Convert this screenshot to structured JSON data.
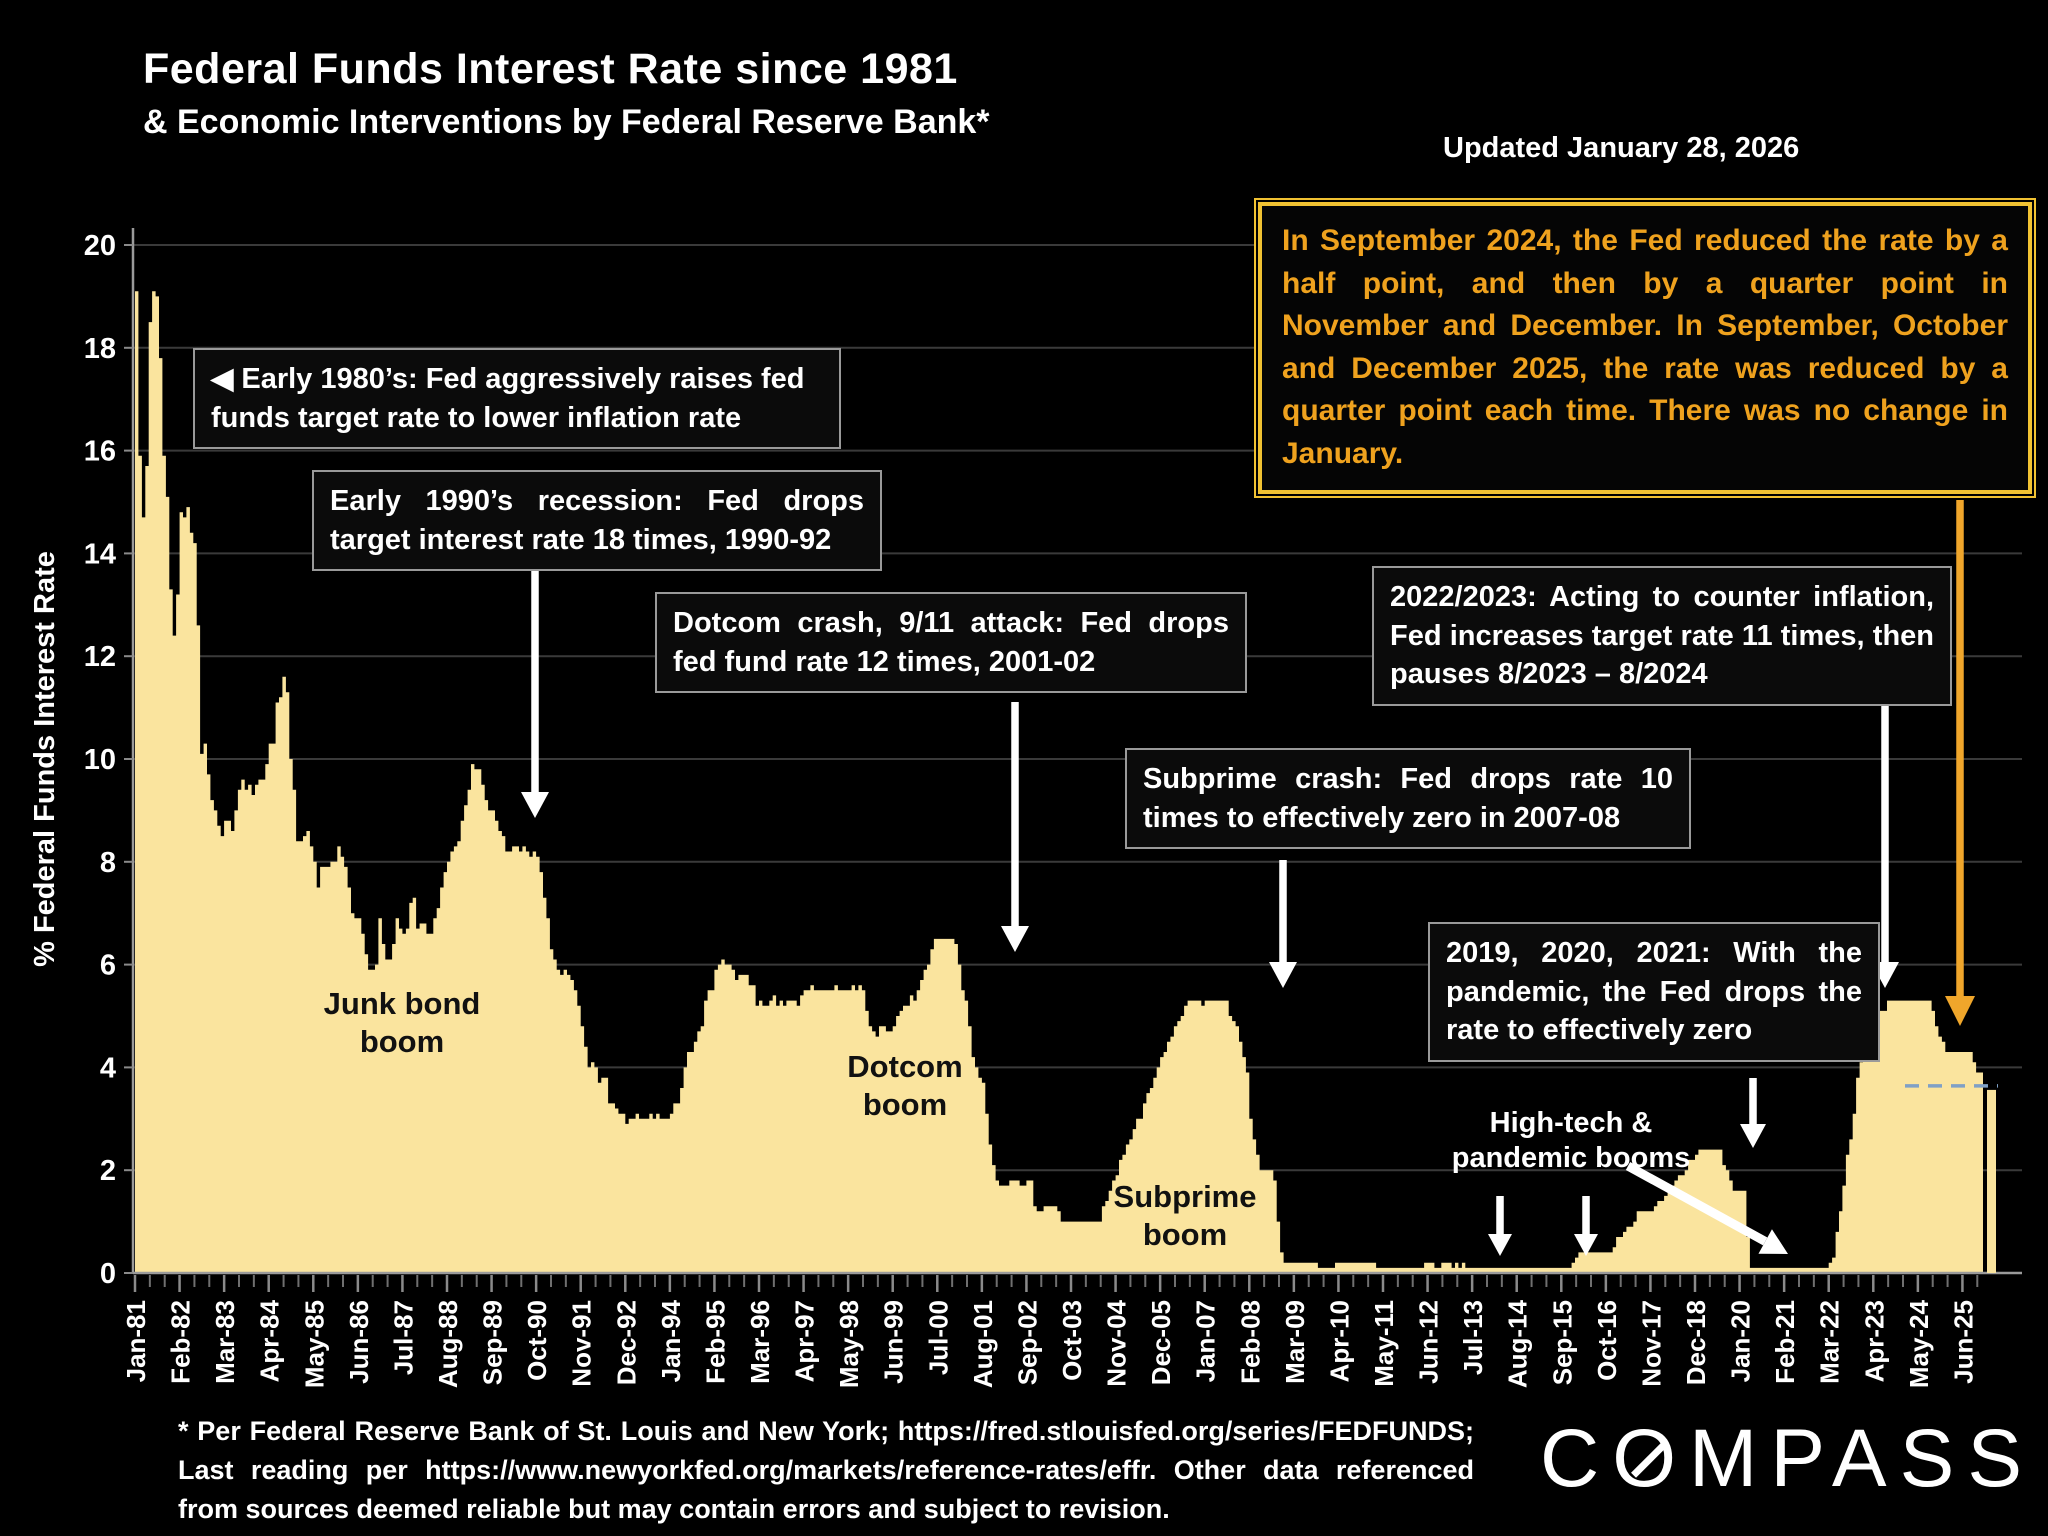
{
  "header": {
    "title": "Federal Funds Interest Rate since 1981",
    "subtitle": "& Economic Interventions by Federal Reserve Bank*",
    "updated": "Updated January 28, 2026"
  },
  "callout": {
    "text": "In September 2024, the Fed reduced the rate by a half point, and then by a quarter point in November and December. In September, October and December 2025, the rate was reduced by a quarter point each time. There was no change in January.",
    "text_color": "#EFA21E",
    "border_color": "#F1C232"
  },
  "annotations": {
    "early80s": "◀ Early 1980’s: Fed aggressively raises fed funds target rate to lower inflation rate",
    "early90s": "Early 1990’s recession: Fed drops target interest rate 18 times, 1990-92",
    "dotcom_crash": "Dotcom crash, 9/11 attack: Fed drops fed fund rate 12 times, 2001-02",
    "inflation2022": "2022/2023: Acting to counter inflation, Fed increases target rate 11 times, then pauses 8/2023 – 8/2024",
    "subprime_crash": "Subprime crash: Fed drops rate 10 times to effectively zero in 2007-08",
    "pandemic": "2019, 2020, 2021: With the pandemic, the Fed drops the rate to effectively zero"
  },
  "boom_labels": {
    "junk_bond": "Junk bond\nboom",
    "dotcom": "Dotcom\nboom",
    "subprime": "Subprime\nboom",
    "hightech": "High-tech &\npandemic booms"
  },
  "chart_data": {
    "type": "area",
    "title": "Federal Funds Interest Rate since 1981",
    "ylabel": "% Federal Funds Interest Rate",
    "ylim": [
      0,
      20
    ],
    "ytick_step": 2,
    "x_start": "Jan-1981",
    "x_frequency": "monthly",
    "xtick_month_interval": 13,
    "xtick_labels": [
      "Jan-81",
      "Feb-82",
      "Mar-83",
      "Apr-84",
      "May-85",
      "Jun-86",
      "Jul-87",
      "Aug-88",
      "Sep-89",
      "Oct-90",
      "Nov-91",
      "Dec-92",
      "Jan-94",
      "Feb-95",
      "Mar-96",
      "Apr-97",
      "May-98",
      "Jun-99",
      "Jul-00",
      "Aug-01",
      "Sep-02",
      "Oct-03",
      "Nov-04",
      "Dec-05",
      "Jan-07",
      "Feb-08",
      "Mar-09",
      "Apr-10",
      "May-11",
      "Jun-12",
      "Jul-13",
      "Aug-14",
      "Sep-15",
      "Oct-16",
      "Nov-17",
      "Dec-18",
      "Jan-20",
      "Feb-21",
      "Mar-22",
      "Apr-23",
      "May-24",
      "Jun-25"
    ],
    "fill_color": "#FAE49E",
    "grid": true,
    "values": [
      19.1,
      15.9,
      14.7,
      15.7,
      18.5,
      19.1,
      19.0,
      17.8,
      15.9,
      15.1,
      13.3,
      12.4,
      13.2,
      14.8,
      14.7,
      14.9,
      14.4,
      14.2,
      12.6,
      10.1,
      10.3,
      9.7,
      9.2,
      9.0,
      8.7,
      8.5,
      8.8,
      8.8,
      8.6,
      9.0,
      9.4,
      9.6,
      9.4,
      9.5,
      9.3,
      9.5,
      9.6,
      9.6,
      9.9,
      10.3,
      10.3,
      11.1,
      11.2,
      11.6,
      11.3,
      10.0,
      9.4,
      8.4,
      8.4,
      8.5,
      8.6,
      8.3,
      8.0,
      7.5,
      7.9,
      7.9,
      7.9,
      8.0,
      8.0,
      8.3,
      8.1,
      7.9,
      7.5,
      7.0,
      6.9,
      6.9,
      6.6,
      6.2,
      5.9,
      5.9,
      6.0,
      6.9,
      6.4,
      6.1,
      6.1,
      6.4,
      6.9,
      6.7,
      6.6,
      6.7,
      7.2,
      7.3,
      6.7,
      6.8,
      6.8,
      6.6,
      6.6,
      6.9,
      7.1,
      7.5,
      7.8,
      8.0,
      8.2,
      8.3,
      8.4,
      8.8,
      9.1,
      9.4,
      9.9,
      9.8,
      9.8,
      9.5,
      9.2,
      9.0,
      9.0,
      8.8,
      8.6,
      8.5,
      8.2,
      8.2,
      8.3,
      8.3,
      8.2,
      8.3,
      8.2,
      8.1,
      8.2,
      8.1,
      7.8,
      7.3,
      6.9,
      6.3,
      6.1,
      5.9,
      5.8,
      5.9,
      5.8,
      5.7,
      5.5,
      5.2,
      4.8,
      4.4,
      4.0,
      4.1,
      4.0,
      3.7,
      3.8,
      3.8,
      3.3,
      3.3,
      3.2,
      3.1,
      3.1,
      2.9,
      3.0,
      3.0,
      3.1,
      3.0,
      3.0,
      3.0,
      3.1,
      3.0,
      3.1,
      3.0,
      3.0,
      3.0,
      3.1,
      3.3,
      3.3,
      3.6,
      4.0,
      4.3,
      4.3,
      4.5,
      4.7,
      4.8,
      5.3,
      5.5,
      5.5,
      5.9,
      6.0,
      6.1,
      6.0,
      6.0,
      5.9,
      5.7,
      5.8,
      5.8,
      5.8,
      5.6,
      5.6,
      5.2,
      5.3,
      5.2,
      5.2,
      5.3,
      5.4,
      5.2,
      5.3,
      5.2,
      5.3,
      5.3,
      5.3,
      5.2,
      5.4,
      5.5,
      5.5,
      5.6,
      5.5,
      5.5,
      5.5,
      5.5,
      5.5,
      5.5,
      5.6,
      5.5,
      5.5,
      5.5,
      5.5,
      5.6,
      5.5,
      5.6,
      5.5,
      5.1,
      4.8,
      4.7,
      4.6,
      4.8,
      4.8,
      4.7,
      4.7,
      4.8,
      5.0,
      5.1,
      5.2,
      5.2,
      5.4,
      5.3,
      5.5,
      5.7,
      5.9,
      6.0,
      6.3,
      6.5,
      6.5,
      6.5,
      6.5,
      6.5,
      6.5,
      6.4,
      6.0,
      5.5,
      5.3,
      4.8,
      4.2,
      4.0,
      3.8,
      3.7,
      3.1,
      2.5,
      2.1,
      1.8,
      1.7,
      1.7,
      1.7,
      1.8,
      1.8,
      1.8,
      1.7,
      1.7,
      1.8,
      1.8,
      1.3,
      1.2,
      1.2,
      1.3,
      1.3,
      1.3,
      1.3,
      1.2,
      1.0,
      1.0,
      1.0,
      1.0,
      1.0,
      1.0,
      1.0,
      1.0,
      1.0,
      1.0,
      1.0,
      1.0,
      1.3,
      1.4,
      1.6,
      1.8,
      1.9,
      2.2,
      2.3,
      2.5,
      2.6,
      2.8,
      3.0,
      3.0,
      3.3,
      3.5,
      3.6,
      3.8,
      4.0,
      4.2,
      4.3,
      4.5,
      4.6,
      4.8,
      4.9,
      5.0,
      5.2,
      5.3,
      5.3,
      5.3,
      5.3,
      5.2,
      5.3,
      5.3,
      5.3,
      5.3,
      5.3,
      5.3,
      5.3,
      5.0,
      4.9,
      4.8,
      4.5,
      4.2,
      3.9,
      3.0,
      2.6,
      2.3,
      2.0,
      2.0,
      2.0,
      2.0,
      1.8,
      1.0,
      0.4,
      0.2,
      0.2,
      0.2,
      0.2,
      0.2,
      0.2,
      0.2,
      0.2,
      0.2,
      0.2,
      0.1,
      0.1,
      0.1,
      0.1,
      0.1,
      0.2,
      0.2,
      0.2,
      0.2,
      0.2,
      0.2,
      0.2,
      0.2,
      0.2,
      0.2,
      0.2,
      0.2,
      0.1,
      0.1,
      0.1,
      0.1,
      0.1,
      0.1,
      0.1,
      0.1,
      0.1,
      0.1,
      0.1,
      0.1,
      0.1,
      0.1,
      0.2,
      0.2,
      0.2,
      0.1,
      0.1,
      0.2,
      0.2,
      0.2,
      0.1,
      0.2,
      0.1,
      0.2,
      0.1,
      0.1,
      0.1,
      0.1,
      0.1,
      0.1,
      0.1,
      0.1,
      0.1,
      0.1,
      0.1,
      0.1,
      0.1,
      0.1,
      0.1,
      0.1,
      0.1,
      0.1,
      0.1,
      0.1,
      0.1,
      0.1,
      0.1,
      0.1,
      0.1,
      0.1,
      0.1,
      0.1,
      0.1,
      0.1,
      0.1,
      0.2,
      0.3,
      0.4,
      0.4,
      0.4,
      0.4,
      0.4,
      0.4,
      0.4,
      0.4,
      0.4,
      0.4,
      0.5,
      0.7,
      0.7,
      0.8,
      0.9,
      0.9,
      1.0,
      1.2,
      1.2,
      1.2,
      1.2,
      1.2,
      1.3,
      1.4,
      1.4,
      1.5,
      1.7,
      1.7,
      1.8,
      1.9,
      1.9,
      2.0,
      2.2,
      2.2,
      2.3,
      2.4,
      2.4,
      2.4,
      2.4,
      2.4,
      2.4,
      2.4,
      2.1,
      2.0,
      1.8,
      1.6,
      1.6,
      1.6,
      1.6,
      0.7,
      0.1,
      0.1,
      0.1,
      0.1,
      0.1,
      0.1,
      0.1,
      0.1,
      0.1,
      0.1,
      0.1,
      0.1,
      0.1,
      0.1,
      0.1,
      0.1,
      0.1,
      0.1,
      0.1,
      0.1,
      0.1,
      0.1,
      0.1,
      0.2,
      0.3,
      0.8,
      1.2,
      1.7,
      2.3,
      2.6,
      3.1,
      3.8,
      4.1,
      4.3,
      4.6,
      4.7,
      4.8,
      5.1,
      5.1,
      5.1,
      5.3,
      5.3,
      5.3,
      5.3,
      5.3,
      5.3,
      5.3,
      5.3,
      5.3,
      5.3,
      5.3,
      5.3,
      5.3,
      5.1,
      4.8,
      4.6,
      4.5,
      4.3,
      4.3,
      4.3,
      4.3,
      4.3,
      4.3,
      4.3,
      4.3,
      4.1,
      3.9,
      3.9,
      3.6
    ],
    "last_reading": {
      "value": 3.64,
      "style": "dashed line and detached bar",
      "line_color": "#7FA0C6"
    }
  },
  "footer": {
    "source": "* Per Federal Reserve Bank of St. Louis and New York; https://fred.stlouisfed.org/series/FEDFUNDS; Last reading per https://www.newyorkfed.org/markets/reference-rates/effr. Other data referenced from sources deemed reliable but may contain errors and subject to revision."
  },
  "logo": {
    "brand_c": "C",
    "brand_o": "O",
    "brand_rest": "MPASS"
  }
}
